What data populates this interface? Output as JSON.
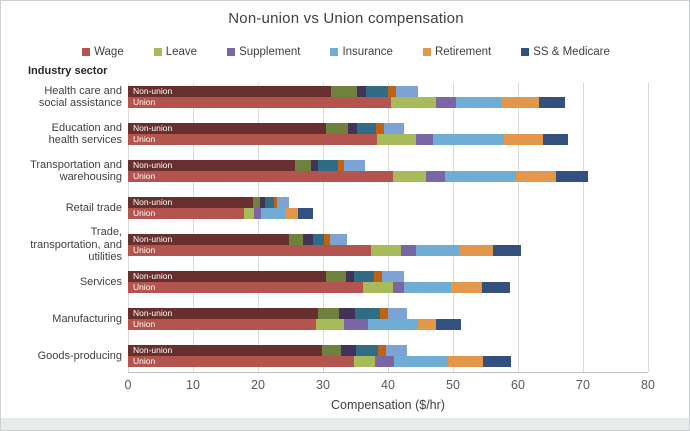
{
  "title": "Non-union vs Union compensation",
  "y_axis_header": "Industry sector",
  "bar_row_labels": [
    "Non-union",
    "Union"
  ],
  "chart_data": {
    "type": "bar",
    "orientation": "horizontal",
    "stacked": true,
    "title": "Non-union vs Union compensation",
    "xlabel": "Compensation ($/hr)",
    "ylabel": "Industry sector",
    "xlim": [
      0,
      80
    ],
    "xticks": [
      0,
      10,
      20,
      30,
      40,
      50,
      60,
      70,
      80
    ],
    "grid": "vertical",
    "legend_position": "top",
    "components": [
      "Wage",
      "Leave",
      "Supplement",
      "Insurance",
      "Retirement",
      "SS & Medicare"
    ],
    "legend_colors": [
      "#b4544f",
      "#a8bb5b",
      "#7a65a5",
      "#6fadd4",
      "#e2974a",
      "#33507f"
    ],
    "series_colors": {
      "non_union": [
        "#67302e",
        "#70813f",
        "#433457",
        "#316c85",
        "#bd6313",
        "#7da2d4"
      ],
      "union": [
        "#b4544f",
        "#a8bb5b",
        "#7a65a5",
        "#6fadd4",
        "#e2974a",
        "#33507f"
      ]
    },
    "categories": [
      {
        "sector": "Health care and social assistance",
        "bars": [
          {
            "label": "Non-union",
            "values": [
              31.2,
              4.1,
              1.3,
              3.4,
              1.2,
              3.4
            ]
          },
          {
            "label": "Union",
            "values": [
              40.5,
              6.9,
              3.1,
              7.1,
              5.7,
              3.9
            ]
          }
        ]
      },
      {
        "sector": "Education and health services",
        "bars": [
          {
            "label": "Non-union",
            "values": [
              30.4,
              3.4,
              1.4,
              3.0,
              1.2,
              3.0
            ]
          },
          {
            "label": "Union",
            "values": [
              38.3,
              6.0,
              2.6,
              11.0,
              5.9,
              3.9
            ]
          }
        ]
      },
      {
        "sector": "Transportation and warehousing",
        "bars": [
          {
            "label": "Non-union",
            "values": [
              25.7,
              2.5,
              1.1,
              3.0,
              1.0,
              3.1
            ]
          },
          {
            "label": "Union",
            "values": [
              40.7,
              5.1,
              2.9,
              11.0,
              6.1,
              4.9
            ]
          }
        ]
      },
      {
        "sector": "Retail trade",
        "bars": [
          {
            "label": "Non-union",
            "values": [
              19.2,
              1.1,
              0.8,
              1.4,
              0.5,
              1.8
            ]
          },
          {
            "label": "Union",
            "values": [
              17.9,
              1.5,
              1.1,
              3.8,
              1.8,
              2.3
            ]
          }
        ]
      },
      {
        "sector": "Trade, transportation, and utilities",
        "bars": [
          {
            "label": "Non-union",
            "values": [
              24.8,
              2.2,
              1.4,
              1.7,
              1.0,
              2.6
            ]
          },
          {
            "label": "Union",
            "values": [
              37.4,
              4.6,
              2.3,
              6.7,
              5.1,
              4.4
            ]
          }
        ]
      },
      {
        "sector": "Services",
        "bars": [
          {
            "label": "Non-union",
            "values": [
              30.5,
              3.0,
              1.3,
              3.1,
              1.2,
              3.3
            ]
          },
          {
            "label": "Union",
            "values": [
              36.1,
              4.6,
              1.8,
              7.2,
              4.8,
              4.2
            ]
          }
        ]
      },
      {
        "sector": "Manufacturing",
        "bars": [
          {
            "label": "Non-union",
            "values": [
              29.2,
              3.3,
              2.5,
              3.7,
              1.3,
              3.0
            ]
          },
          {
            "label": "Union",
            "values": [
              28.9,
              4.4,
              3.6,
              7.7,
              2.8,
              3.8
            ]
          }
        ]
      },
      {
        "sector": "Goods-producing",
        "bars": [
          {
            "label": "Non-union",
            "values": [
              29.8,
              3.0,
              2.3,
              3.3,
              1.3,
              3.3
            ]
          },
          {
            "label": "Union",
            "values": [
              34.7,
              3.3,
              3.0,
              8.2,
              5.4,
              4.3
            ]
          }
        ]
      }
    ]
  }
}
